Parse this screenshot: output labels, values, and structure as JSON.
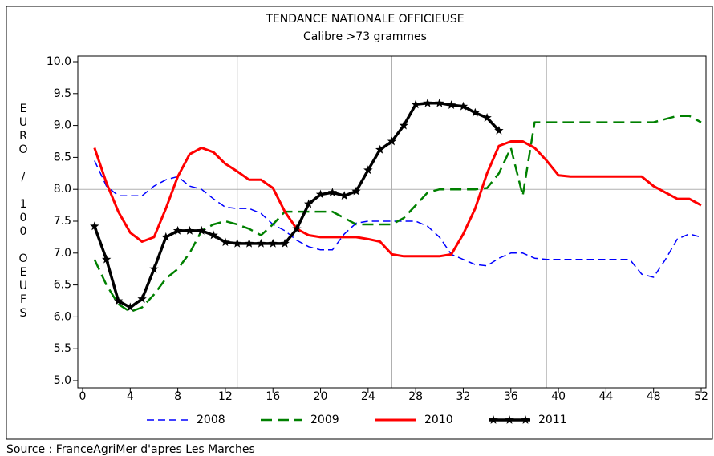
{
  "chart_data": {
    "type": "line",
    "title": "TENDANCE NATIONALE OFFICIEUSE",
    "subtitle": "Calibre >73 grammes",
    "y_label": "EURO / 100 OEUFS",
    "source": "Source : FranceAgriMer d'apres Les Marches",
    "x": [
      1,
      2,
      3,
      4,
      5,
      6,
      7,
      8,
      9,
      10,
      11,
      12,
      13,
      14,
      15,
      16,
      17,
      18,
      19,
      20,
      21,
      22,
      23,
      24,
      25,
      26,
      27,
      28,
      29,
      30,
      31,
      32,
      33,
      34,
      35,
      36,
      37,
      38,
      39,
      40,
      41,
      42,
      43,
      44,
      45,
      46,
      47,
      48,
      49,
      50,
      51,
      52
    ],
    "xlim": [
      0,
      52
    ],
    "xticks": [
      0,
      4,
      8,
      12,
      16,
      20,
      24,
      28,
      32,
      36,
      40,
      44,
      48,
      52
    ],
    "ylim": [
      5,
      10
    ],
    "yticks": [
      {
        "value": 5,
        "label": "5.0"
      },
      5.5,
      {
        "value": 6,
        "label": "6.0"
      },
      6.5,
      {
        "value": 7,
        "label": "7.0"
      },
      7.5,
      {
        "value": 8,
        "label": "8.0"
      },
      8.5,
      {
        "value": 9,
        "label": "9.0"
      },
      9.5,
      {
        "value": 10,
        "label": "10.0"
      }
    ],
    "xgrid": [
      13,
      26,
      39
    ],
    "ygrid": [
      8
    ],
    "legend": "bottom",
    "series": [
      {
        "name": "2008",
        "color": "#0000ff",
        "style": "dashed",
        "width": 1.5,
        "values": [
          8.45,
          8.05,
          7.9,
          7.9,
          7.9,
          8.05,
          8.15,
          8.2,
          8.05,
          8.0,
          7.85,
          7.72,
          7.7,
          7.7,
          7.62,
          7.45,
          7.35,
          7.2,
          7.1,
          7.05,
          7.05,
          7.3,
          7.47,
          7.5,
          7.5,
          7.5,
          7.5,
          7.5,
          7.42,
          7.25,
          6.98,
          6.9,
          6.82,
          6.8,
          6.92,
          7.0,
          7.0,
          6.92,
          6.9,
          6.9,
          6.9,
          6.9,
          6.9,
          6.9,
          6.9,
          6.9,
          6.67,
          6.62,
          6.9,
          7.22,
          7.3,
          7.25
        ]
      },
      {
        "name": "2009",
        "color": "#008000",
        "style": "dashed",
        "width": 2.5,
        "values": [
          6.9,
          6.5,
          6.2,
          6.08,
          6.15,
          6.35,
          6.6,
          6.75,
          7.0,
          7.35,
          7.45,
          7.5,
          7.45,
          7.38,
          7.28,
          7.45,
          7.65,
          7.65,
          7.65,
          7.65,
          7.65,
          7.55,
          7.45,
          7.45,
          7.45,
          7.45,
          7.55,
          7.75,
          7.95,
          8.0,
          8.0,
          8.0,
          8.0,
          8.02,
          8.25,
          8.65,
          7.9,
          9.05,
          9.05,
          9.05,
          9.05,
          9.05,
          9.05,
          9.05,
          9.05,
          9.05,
          9.05,
          9.05,
          9.1,
          9.15,
          9.15,
          9.05
        ]
      },
      {
        "name": "2010",
        "color": "#ff0000",
        "style": "solid",
        "width": 3,
        "values": [
          8.65,
          8.1,
          7.65,
          7.32,
          7.18,
          7.25,
          7.7,
          8.2,
          8.55,
          8.65,
          8.58,
          8.4,
          8.28,
          8.15,
          8.15,
          8.02,
          7.65,
          7.38,
          7.28,
          7.25,
          7.25,
          7.25,
          7.25,
          7.22,
          7.18,
          6.98,
          6.95,
          6.95,
          6.95,
          6.95,
          6.98,
          7.3,
          7.7,
          8.25,
          8.68,
          8.75,
          8.75,
          8.65,
          8.45,
          8.22,
          8.2,
          8.2,
          8.2,
          8.2,
          8.2,
          8.2,
          8.2,
          8.05,
          7.95,
          7.85,
          7.85,
          7.75
        ]
      },
      {
        "name": "2011",
        "color": "#000000",
        "style": "solid",
        "width": 3.5,
        "marker": "star",
        "values": [
          7.42,
          6.9,
          6.25,
          6.15,
          6.28,
          6.75,
          7.25,
          7.35,
          7.35,
          7.35,
          7.28,
          7.17,
          7.15,
          7.15,
          7.15,
          7.15,
          7.15,
          7.38,
          7.77,
          7.92,
          7.95,
          7.9,
          7.97,
          8.3,
          8.62,
          8.75,
          9.0,
          9.33,
          9.35,
          9.35,
          9.32,
          9.3,
          9.2,
          9.12,
          8.92,
          null,
          null,
          null,
          null,
          null,
          null,
          null,
          null,
          null,
          null,
          null,
          null,
          null,
          null,
          null,
          null,
          null
        ]
      }
    ]
  }
}
